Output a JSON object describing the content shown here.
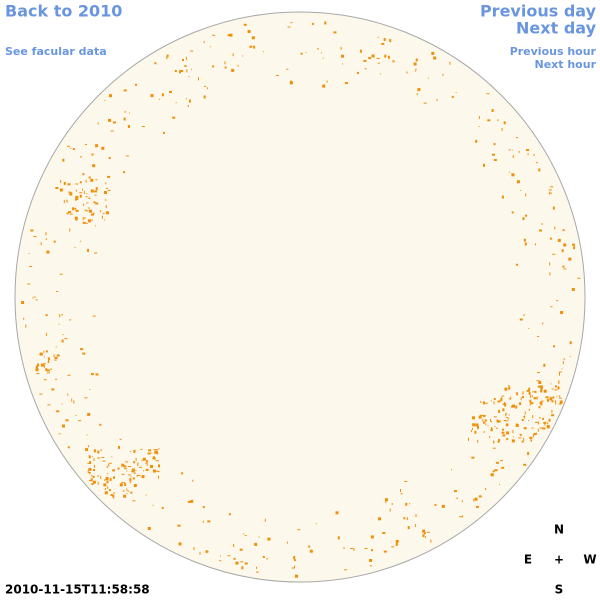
{
  "nav": {
    "back": "Back to 2010",
    "facular": "See facular data",
    "previous_day": "Previous day",
    "next_day": "Next day",
    "previous_hour": "Previous hour",
    "next_hour": "Next hour"
  },
  "timestamp": "2010-11-15T11:58:58",
  "compass": {
    "north": "N",
    "east": "E",
    "center": "+",
    "west": "W",
    "south": "S"
  }
}
